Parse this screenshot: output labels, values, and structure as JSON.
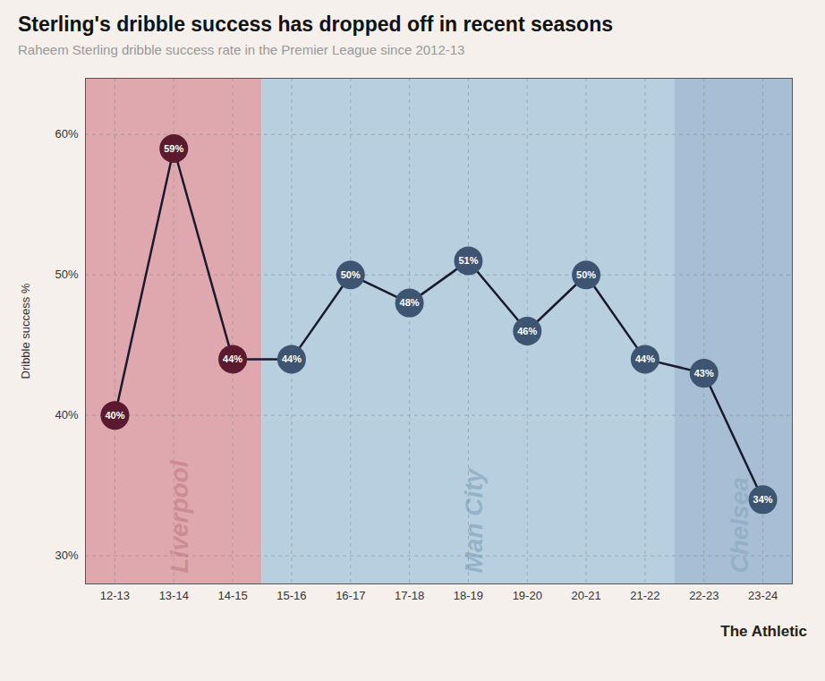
{
  "chart_data": {
    "type": "line",
    "title": "Sterling's dribble success has dropped off in recent seasons",
    "subtitle": "Raheem Sterling dribble success rate in the Premier League since 2012-13",
    "caption": "The Athletic",
    "categories": [
      "12-13",
      "13-14",
      "14-15",
      "15-16",
      "16-17",
      "17-18",
      "18-19",
      "19-20",
      "20-21",
      "21-22",
      "22-23",
      "23-24"
    ],
    "values": [
      40,
      59,
      44,
      44,
      50,
      48,
      51,
      46,
      50,
      44,
      43,
      34
    ],
    "value_labels": [
      "40%",
      "59%",
      "44%",
      "44%",
      "50%",
      "48%",
      "51%",
      "46%",
      "50%",
      "44%",
      "43%",
      "34%"
    ],
    "data_labels": true,
    "color": "#1a1a2e",
    "colors": [
      "#5c1a2e",
      "#5c1a2e",
      "#5c1a2e",
      "#3d5570",
      "#3d5570",
      "#3d5570",
      "#3d5570",
      "#3d5570",
      "#3d5570",
      "#3d5570",
      "#3d5570",
      "#3d5570"
    ],
    "marker": "circle",
    "ylabel": "Dribble success %",
    "ylim": [
      28,
      64
    ],
    "yticks": [
      {
        "value": 30,
        "label": "30%"
      },
      {
        "value": 40,
        "label": "40%"
      },
      {
        "value": 50,
        "label": "50%"
      },
      {
        "value": 60,
        "label": "60%"
      }
    ],
    "grid": true,
    "regions": [
      {
        "label": "Liverpool",
        "start": "12-13",
        "end": "14-15",
        "color": "#dfa8ae",
        "label_color": "#c98a90"
      },
      {
        "label": "Man City",
        "start": "15-16",
        "end": "21-22",
        "color": "#b8cfe0",
        "label_color": "#90afc5"
      },
      {
        "label": "Chelsea",
        "start": "22-23",
        "end": "23-24",
        "color": "#a8bed4",
        "label_color": "#90afc5"
      }
    ]
  }
}
